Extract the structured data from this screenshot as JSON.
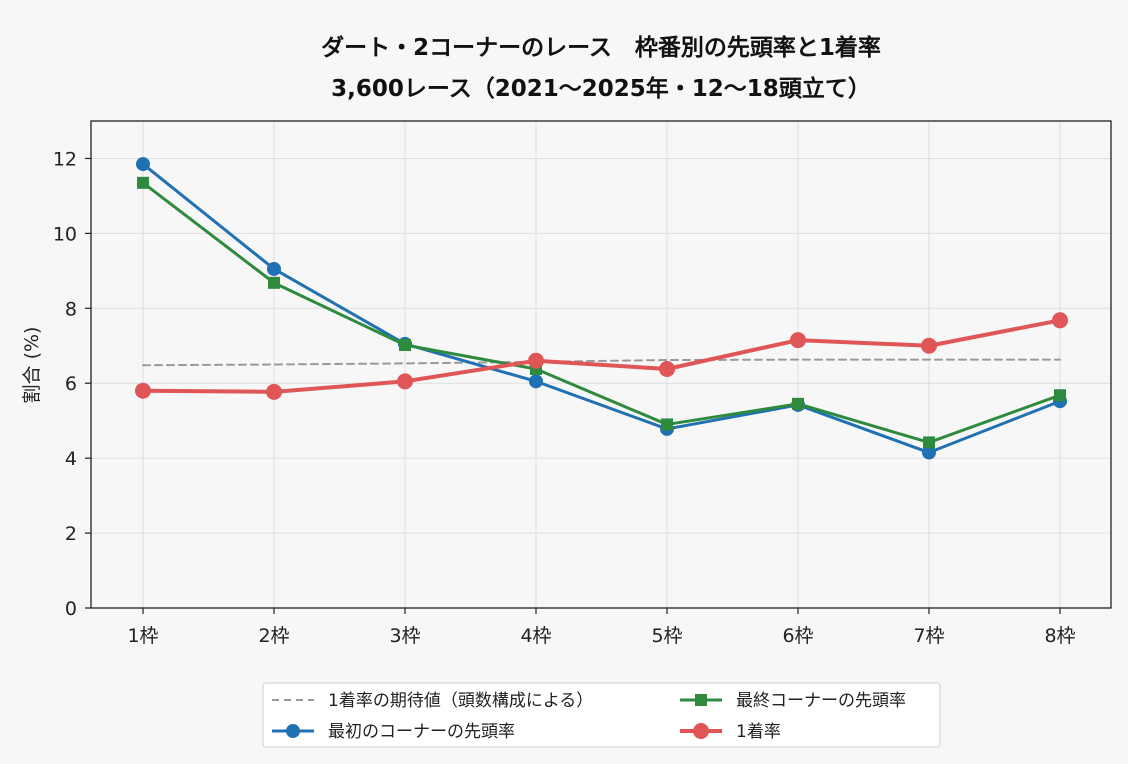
{
  "chart_data": {
    "type": "line",
    "title": [
      "ダート・2コーナーのレース　枠番別の先頭率と1着率",
      "3,600レース（2021〜2025年・12〜18頭立て）"
    ],
    "xlabel": "",
    "ylabel": "割合 (%)",
    "categories": [
      "1枠",
      "2枠",
      "3枠",
      "4枠",
      "5枠",
      "6枠",
      "7枠",
      "8枠"
    ],
    "yticks": [
      "0",
      "2",
      "4",
      "6",
      "8",
      "10",
      "12"
    ],
    "ylim": [
      0,
      13
    ],
    "grid": true,
    "legend_position": "bottom",
    "series": [
      {
        "name": "1着率の期待値（頭数構成による）",
        "marker": "none",
        "style": "dashed",
        "color": "#999999",
        "values": [
          6.48,
          6.5,
          6.53,
          6.57,
          6.62,
          6.63,
          6.63,
          6.63
        ]
      },
      {
        "name": "最初のコーナーの先頭率",
        "marker": "circle",
        "style": "solid",
        "color": "#2070b4",
        "values": [
          11.85,
          9.05,
          7.05,
          6.05,
          4.78,
          5.42,
          4.15,
          5.52
        ]
      },
      {
        "name": "最終コーナーの先頭率",
        "marker": "square",
        "style": "solid",
        "color": "#2e8b3e",
        "values": [
          11.35,
          8.68,
          7.02,
          6.38,
          4.9,
          5.45,
          4.42,
          5.68
        ]
      },
      {
        "name": "1着率",
        "marker": "circle",
        "style": "solid",
        "color": "#e05555",
        "values": [
          5.8,
          5.77,
          6.05,
          6.6,
          6.38,
          7.15,
          7.0,
          7.68
        ]
      }
    ]
  }
}
